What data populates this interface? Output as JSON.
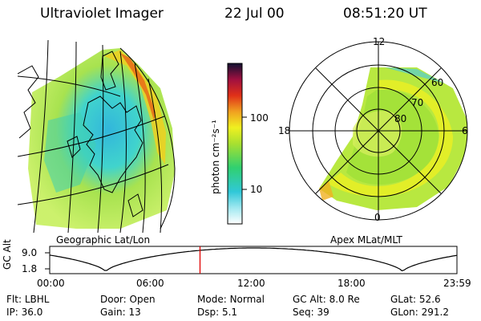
{
  "header": {
    "title": "Ultraviolet Imager",
    "date": "22 Jul 00",
    "time": "08:51:20 UT"
  },
  "left_panel": {
    "caption": "Geographic Lat/Lon"
  },
  "colorbar": {
    "label": "photon cm⁻²s⁻¹",
    "ticks": [
      "100",
      "10"
    ],
    "scale": "log"
  },
  "polar_panel": {
    "caption": "Apex MLat/MLT",
    "mlt_labels": {
      "top": "12",
      "left": "18",
      "right": "6",
      "bottom": "0"
    },
    "lat_labels": [
      "60",
      "70",
      "80"
    ]
  },
  "orbit_plot": {
    "ylabel": "GC Alt",
    "ytick_top": "9.0",
    "ytick_bottom": "1.8",
    "xticks": [
      "00:00",
      "06:00",
      "12:00",
      "18:00",
      "23:59"
    ],
    "current_time_hours": 8.856
  },
  "footer": {
    "row1": [
      {
        "label": "Flt:",
        "value": "LBHL"
      },
      {
        "label": "Door:",
        "value": "Open"
      },
      {
        "label": "Mode:",
        "value": "Normal"
      },
      {
        "label": "GC Alt:",
        "value": "8.0 Re"
      },
      {
        "label": "GLat:",
        "value": "52.6"
      }
    ],
    "row2": [
      {
        "label": "IP:",
        "value": "36.0"
      },
      {
        "label": "Gain:",
        "value": "13"
      },
      {
        "label": "Dsp:",
        "value": "5.1"
      },
      {
        "label": "Seq:",
        "value": "39"
      },
      {
        "label": "GLon:",
        "value": "291.2"
      }
    ]
  },
  "colors": {
    "orbit_marker": "#e00000",
    "aurora_low": "#30d0c8",
    "aurora_mid": "#c8e830",
    "aurora_high": "#e8a020"
  }
}
